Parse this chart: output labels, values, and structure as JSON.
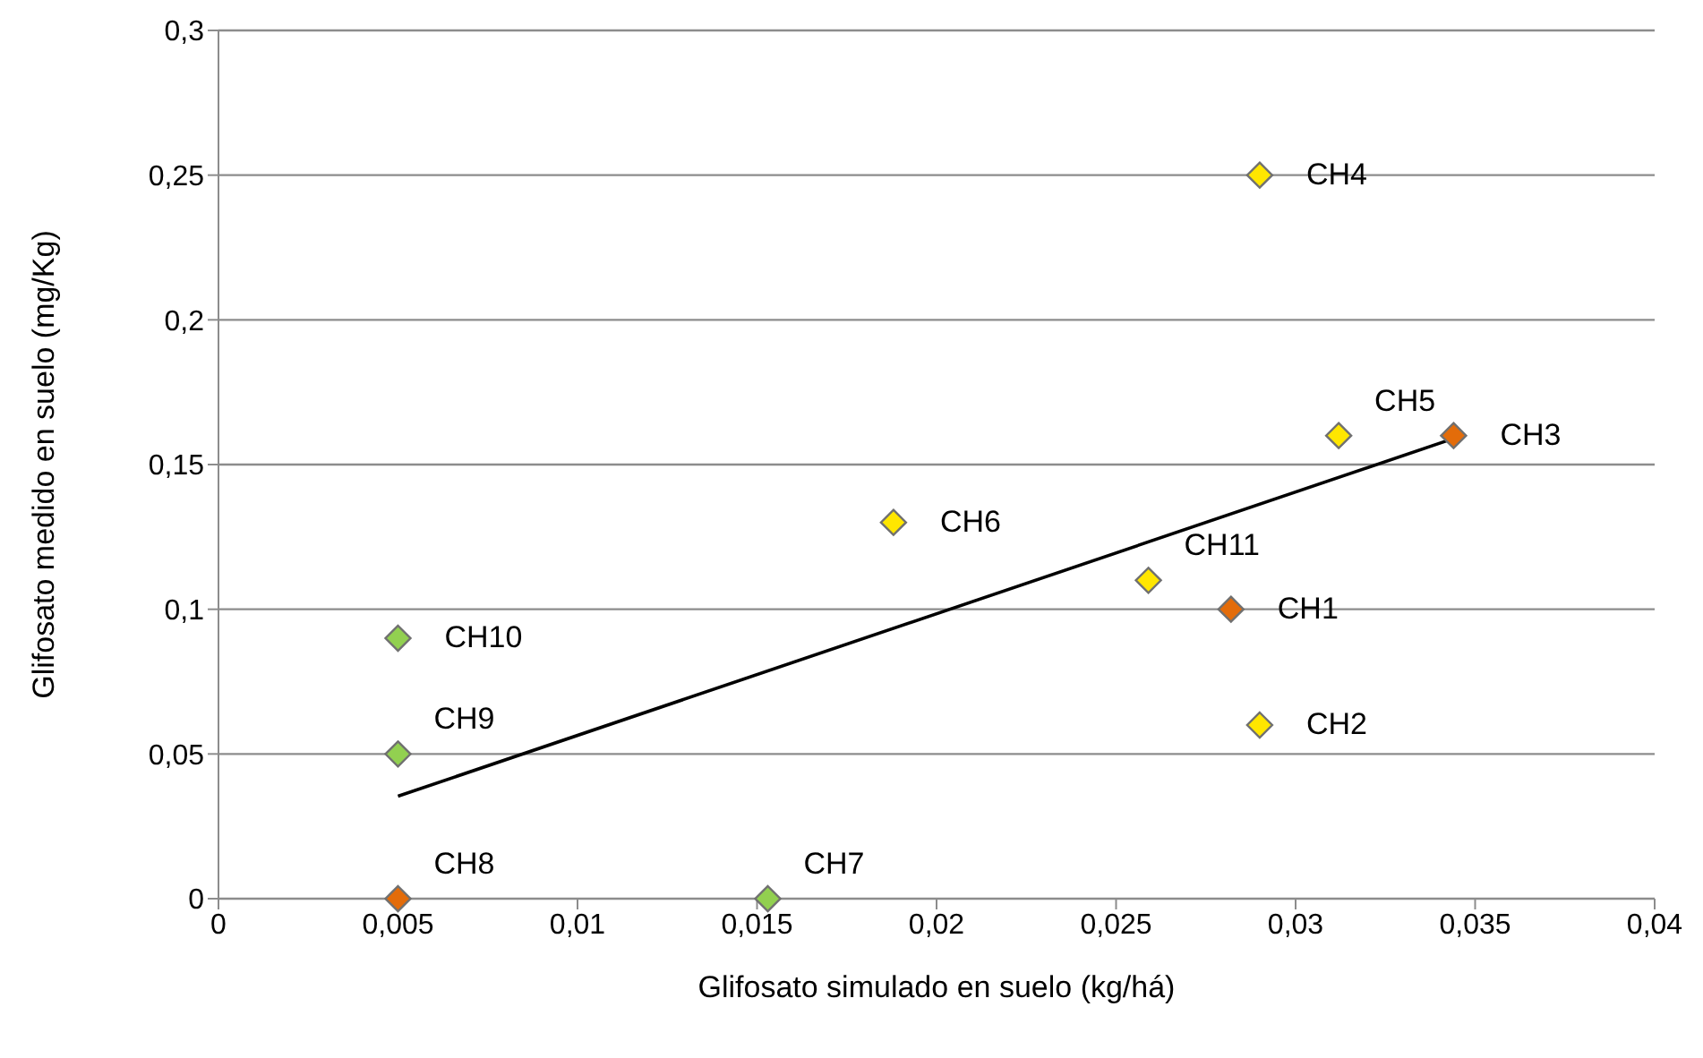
{
  "chart_data": {
    "type": "scatter",
    "xlabel": "Glifosato simulado en suelo (kg/há)",
    "ylabel": "Glifosato medido en suelo (mg/Kg)",
    "xlim": [
      0,
      0.04
    ],
    "xticks": [
      0,
      {
        "value": 0.005,
        "label": "0,005"
      },
      {
        "value": 0.01,
        "label": "0,01"
      },
      {
        "value": 0.015,
        "label": "0,015"
      },
      {
        "value": 0.02,
        "label": "0,02"
      },
      {
        "value": 0.025,
        "label": "0,025"
      },
      {
        "value": 0.03,
        "label": "0,03"
      },
      {
        "value": 0.035,
        "label": "0,035"
      },
      {
        "value": 0.04,
        "label": "0,04"
      }
    ],
    "ylim": [
      0,
      0.3
    ],
    "yticks": [
      0,
      {
        "value": 0.05,
        "label": "0,05"
      },
      {
        "value": 0.1,
        "label": "0,1"
      },
      {
        "value": 0.15,
        "label": "0,15"
      },
      {
        "value": 0.2,
        "label": "0,2"
      },
      {
        "value": 0.25,
        "label": "0,25"
      },
      {
        "value": 0.3,
        "label": "0,3"
      }
    ],
    "grid": "y",
    "marker": "diamond",
    "legend": false,
    "series": [
      {
        "x": [
          0.0282,
          0.029,
          0.0344,
          0.029,
          0.0312,
          0.0188,
          0.0153,
          0.005,
          0.005,
          0.005,
          0.0259
        ],
        "values": [
          0.1,
          0.06,
          0.16,
          0.25,
          0.16,
          0.13,
          0,
          0,
          0.05,
          0.09,
          0.11
        ],
        "colors": [
          "#e36c0a",
          "#ffe600",
          "#e36c0a",
          "#ffe600",
          "#ffe600",
          "#ffe600",
          "#92d050",
          "#e36c0a",
          "#92d050",
          "#92d050",
          "#ffe600"
        ]
      },
      {
        "type": "line",
        "x": [
          0.005,
          0.0344
        ],
        "values": [
          0.0354,
          0.159
        ],
        "color": "#000000",
        "marker": "none",
        "line_style": "solid"
      }
    ],
    "annotations": [
      {
        "text": "CH1",
        "x": 0.0282,
        "y": 0.1
      },
      {
        "text": "CH2",
        "x": 0.029,
        "y": 0.06
      },
      {
        "text": "CH3",
        "x": 0.0344,
        "y": 0.16
      },
      {
        "text": "CH4",
        "x": 0.029,
        "y": 0.25
      },
      {
        "text": "CH5",
        "x": 0.0312,
        "y": 0.16
      },
      {
        "text": "CH6",
        "x": 0.0188,
        "y": 0.13
      },
      {
        "text": "CH7",
        "x": 0.0153,
        "y": 0
      },
      {
        "text": "CH8",
        "x": 0.005,
        "y": 0
      },
      {
        "text": "CH9",
        "x": 0.005,
        "y": 0.05
      },
      {
        "text": "CH10",
        "x": 0.005,
        "y": 0.09
      },
      {
        "text": "CH11",
        "x": 0.0259,
        "y": 0.11
      }
    ]
  }
}
